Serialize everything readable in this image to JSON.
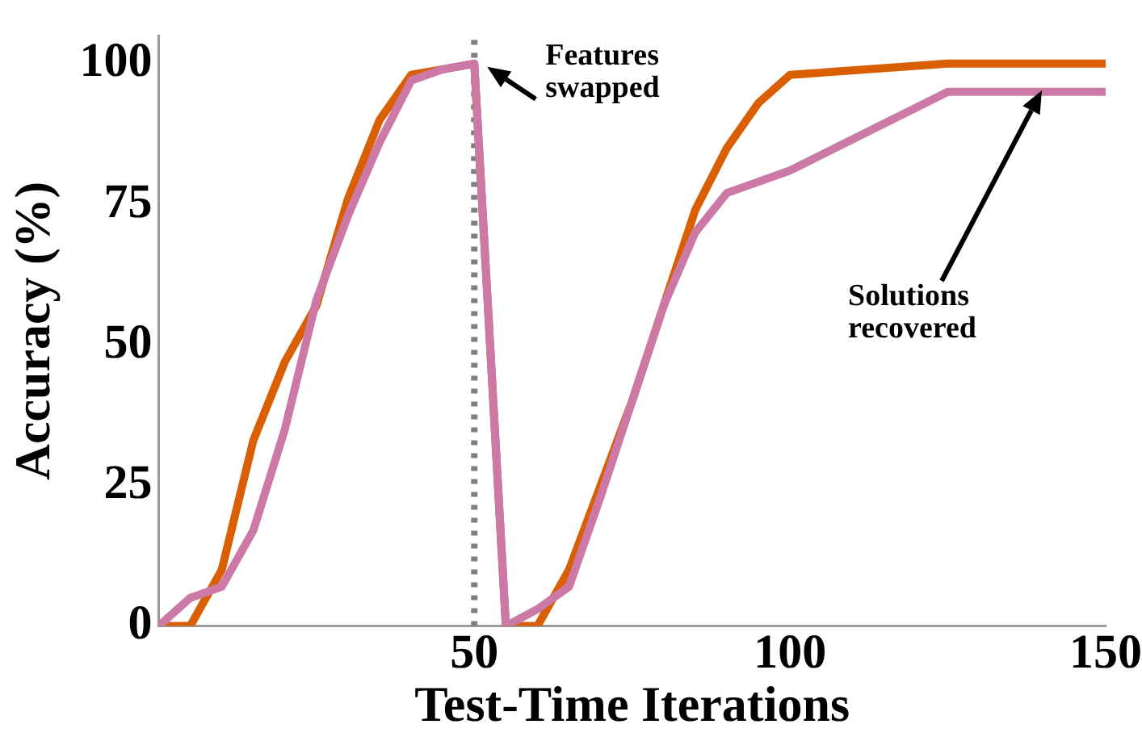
{
  "chart_data": {
    "type": "line",
    "xlabel": "Test-Time Iterations",
    "ylabel": "Accuracy (%)",
    "xlim": [
      0,
      150
    ],
    "ylim": [
      0,
      105
    ],
    "xticks": [
      50,
      100,
      150
    ],
    "yticks": [
      0,
      25,
      50,
      75,
      100
    ],
    "grid": false,
    "legend": false,
    "marker": "none",
    "line_style": "solid",
    "series": [
      {
        "color": "#d95f02",
        "x": [
          0,
          5,
          10,
          15,
          20,
          25,
          30,
          35,
          40,
          45,
          50,
          55,
          60,
          65,
          70,
          75,
          80,
          85,
          90,
          95,
          100,
          125,
          150
        ],
        "values": [
          0,
          0,
          10,
          33,
          47,
          57,
          76,
          90,
          98,
          99,
          100,
          0,
          0,
          10,
          25,
          40,
          57,
          74,
          85,
          93,
          98,
          100,
          100
        ]
      },
      {
        "color": "#cc79a7",
        "x": [
          0,
          5,
          10,
          15,
          20,
          25,
          30,
          35,
          40,
          45,
          50,
          55,
          60,
          65,
          70,
          75,
          80,
          85,
          90,
          100,
          125,
          150
        ],
        "values": [
          0,
          5,
          7,
          17,
          35,
          58,
          73,
          86,
          97,
          99,
          100,
          0,
          3,
          7,
          23,
          40,
          57,
          70,
          77,
          81,
          95,
          95
        ]
      }
    ],
    "ref_lines": [
      {
        "axis": "x",
        "value": 50,
        "color": "#808080",
        "line_style": "dotted"
      }
    ],
    "annotations": [
      {
        "text": "Features swapped",
        "x": 50,
        "y": 100
      },
      "Solutions recovered"
    ]
  }
}
